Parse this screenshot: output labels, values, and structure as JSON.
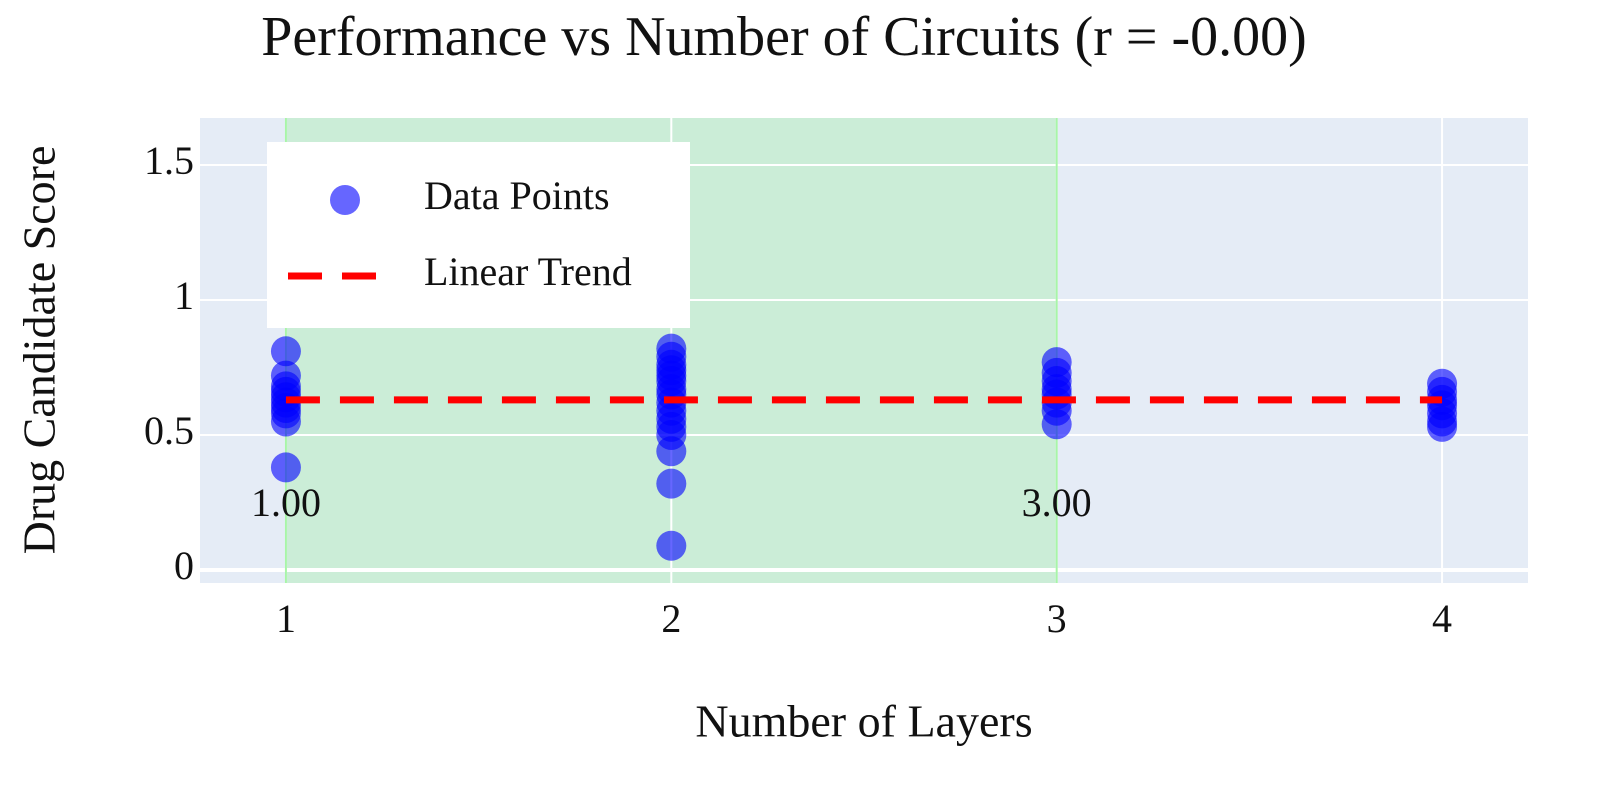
{
  "chart_data": {
    "type": "scatter",
    "title": "Performance vs Number of Circuits (r = -0.00)",
    "x_label": "Number of Layers",
    "y_label": "Drug Candidate Score",
    "xlim": [
      0.777,
      4.223
    ],
    "ylim": [
      -0.048,
      1.674
    ],
    "xticks": [
      1,
      2,
      3,
      4
    ],
    "yticks": [
      0,
      0.5,
      1,
      1.5
    ],
    "grid": true,
    "legend": "top-left",
    "shaded_region": [
      1,
      3
    ],
    "shaded_color": "#90ee90",
    "vlines": [
      {
        "value": 1,
        "label": "1.00"
      },
      {
        "value": 3,
        "label": "3.00"
      }
    ],
    "vline_color": "#a8f5a8",
    "series": [
      {
        "name": "Data Points",
        "color": "#0000ff",
        "mode": "markers",
        "x": [
          1,
          1,
          1,
          1,
          1,
          1,
          1,
          1,
          1,
          1,
          2,
          2,
          2,
          2,
          2,
          2,
          2,
          2,
          2,
          2,
          2,
          2,
          2,
          2,
          2,
          2,
          3,
          3,
          3,
          3,
          3,
          3,
          3,
          3,
          4,
          4,
          4,
          4,
          4,
          4,
          4
        ],
        "values": [
          0.81,
          0.72,
          0.68,
          0.66,
          0.64,
          0.62,
          0.6,
          0.58,
          0.55,
          0.38,
          0.82,
          0.79,
          0.76,
          0.74,
          0.72,
          0.7,
          0.67,
          0.65,
          0.62,
          0.59,
          0.56,
          0.53,
          0.5,
          0.44,
          0.32,
          0.09,
          0.77,
          0.73,
          0.7,
          0.67,
          0.65,
          0.62,
          0.59,
          0.54,
          0.69,
          0.66,
          0.63,
          0.61,
          0.58,
          0.55,
          0.53
        ]
      },
      {
        "name": "Linear Trend",
        "color": "#ff0000",
        "mode": "lines",
        "dash": "dash",
        "x": [
          1,
          4
        ],
        "values": [
          0.63,
          0.63
        ]
      }
    ]
  }
}
